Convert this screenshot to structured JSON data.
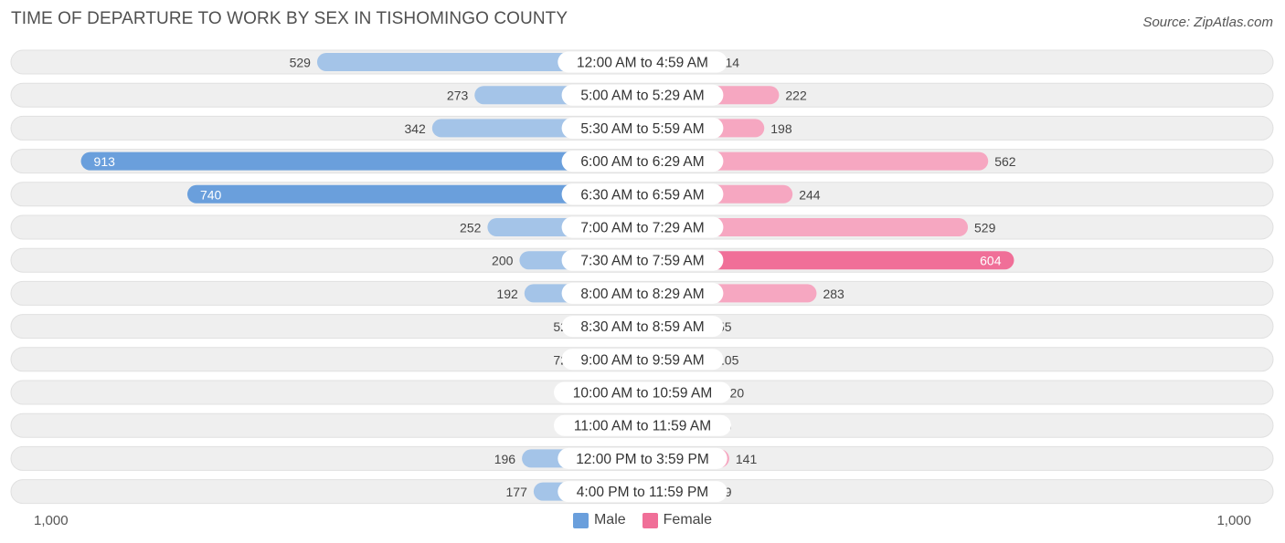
{
  "title": "TIME OF DEPARTURE TO WORK BY SEX IN TISHOMINGO COUNTY",
  "source": "Source: ZipAtlas.com",
  "axis": {
    "left_label": "1,000",
    "right_label": "1,000"
  },
  "legend": {
    "male_label": "Male",
    "female_label": "Female"
  },
  "colors": {
    "male_light": "#a4c4e8",
    "male_dark": "#6a9fdc",
    "female_light": "#f6a7c1",
    "female_dark": "#f06f98",
    "track": "#efefef",
    "track_border": "#e0e0e0"
  },
  "chart_data": {
    "type": "bar",
    "title": "TIME OF DEPARTURE TO WORK BY SEX IN TISHOMINGO COUNTY",
    "orientation": "horizontal-diverging",
    "xlim": [
      -1000,
      1000
    ],
    "categories": [
      "12:00 AM to 4:59 AM",
      "5:00 AM to 5:29 AM",
      "5:30 AM to 5:59 AM",
      "6:00 AM to 6:29 AM",
      "6:30 AM to 6:59 AM",
      "7:00 AM to 7:29 AM",
      "7:30 AM to 7:59 AM",
      "8:00 AM to 8:29 AM",
      "8:30 AM to 8:59 AM",
      "9:00 AM to 9:59 AM",
      "10:00 AM to 10:59 AM",
      "11:00 AM to 11:59 AM",
      "12:00 PM to 3:59 PM",
      "4:00 PM to 11:59 PM"
    ],
    "series": [
      {
        "name": "Male",
        "values": [
          529,
          273,
          342,
          913,
          740,
          252,
          200,
          192,
          52,
          72,
          0,
          0,
          196,
          177
        ]
      },
      {
        "name": "Female",
        "values": [
          114,
          222,
          198,
          562,
          244,
          529,
          604,
          283,
          55,
          105,
          120,
          66,
          141,
          59
        ]
      }
    ],
    "legend_position": "bottom-center",
    "grid": false
  }
}
